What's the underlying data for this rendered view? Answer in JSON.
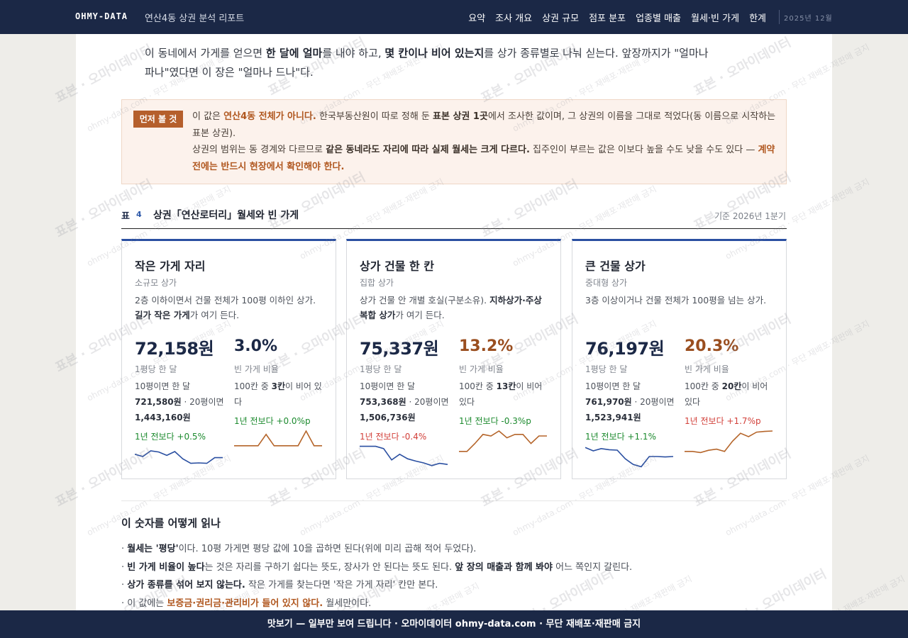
{
  "nav": {
    "brand": "OHMY-DATA",
    "report_title": "연산4동 상권 분석 리포트",
    "items": [
      "요약",
      "조사 개요",
      "상권 규모",
      "점포 분포",
      "업종별 매출",
      "월세·빈 가게",
      "한계"
    ],
    "date": "2025년 12월"
  },
  "intro": {
    "p1": "이 동네에서 가게를 얻으면 ",
    "b1": "한 달에 얼마",
    "p2": "를 내야 하고, ",
    "b2": "몇 칸이나 비어 있는지",
    "p3": "를 상가 종류별로 나눠 싣는다. 앞장까지가 \"얼마나 파나\"였다면 이 장은 \"얼마나 드나\"다."
  },
  "notice": {
    "badge": "먼저 볼 것",
    "l1a": "이 값은 ",
    "l1b": "연산4동 전체가 아니다.",
    "l1c": " 한국부동산원이 따로 정해 둔 ",
    "l1d": "표본 상권 1곳",
    "l1e": "에서 조사한 값이며, 그 상권의 이름을 그대로 적었다(동 이름으로 시작하는 표본 상권).",
    "l2a": "상권의 범위는 동 경계와 다르므로 ",
    "l2b": "같은 동네라도 자리에 따라 실제 월세는 크게 다르다.",
    "l2c": " 집주인이 부르는 값은 이보다 높을 수도 낮을 수도 있다 — ",
    "l2d": "계약 전에는 반드시 현장에서 확인해야 한다."
  },
  "table": {
    "label": "표",
    "number": "4",
    "title": "상권「연산로터리」월세와 빈 가게",
    "basis": "기준 2026년 1분기"
  },
  "cards": [
    {
      "title": "작은 가게 자리",
      "sub": "소규모 상가",
      "desc1": "2층 이하이면서 건물 전체가 100평 이하인 상가. ",
      "desc2": "길가 작은 가게",
      "desc3": "가 여기 든다.",
      "price": "72,158원",
      "price_label": "1평당 한 달",
      "detail_a": "10평이면 한 달 ",
      "detail_b": "721,580원",
      "detail_c": " · 20평이면 ",
      "detail_d": "1,443,160원",
      "price_change": "1년 전보다 +0.5%",
      "price_trend": "up",
      "vacancy": "3.0%",
      "vacancy_color": "#1b2846",
      "vacancy_label": "빈 가게 비율",
      "vac_a": "100칸 중 ",
      "vac_b": "3칸",
      "vac_c": "이 비어 있다",
      "vacancy_change": "1년 전보다 +0.0%p",
      "vacancy_trend": "up",
      "price_series": [
        0.6,
        0.5,
        0.75,
        0.7,
        0.55,
        0.72,
        0.4,
        0.2,
        0.22,
        0.2,
        0.45,
        0.45
      ],
      "vac_series": [
        0.35,
        0.35,
        0.35,
        0.35,
        0.85,
        0.35,
        0.35,
        0.35,
        0.35,
        1.0,
        0.35,
        0.35
      ]
    },
    {
      "title": "상가 건물 한 칸",
      "sub": "집합 상가",
      "desc1": "상가 건물 안 개별 호실(구분소유). ",
      "desc2": "지하상가·주상복합 상가",
      "desc3": "가 여기 든다.",
      "price": "75,337원",
      "price_label": "1평당 한 달",
      "detail_a": "10평이면 한 달 ",
      "detail_b": "753,368원",
      "detail_c": " · 20평이면 ",
      "detail_d": "1,506,736원",
      "price_change": "1년 전보다 -0.4%",
      "price_trend": "down",
      "vacancy": "13.2%",
      "vacancy_color": "#9a4e1f",
      "vacancy_label": "빈 가게 비율",
      "vac_a": "100칸 중 ",
      "vac_b": "13칸",
      "vac_c": "이 비어 있다",
      "vacancy_change": "1년 전보다 -0.3%p",
      "vacancy_trend": "up",
      "price_series": [
        0.95,
        0.95,
        0.95,
        0.85,
        0.35,
        0.6,
        0.4,
        0.3,
        0.22,
        0.1,
        0.2,
        0.15
      ],
      "vac_series": [
        0.1,
        0.1,
        0.45,
        0.85,
        0.78,
        1.0,
        0.7,
        0.85,
        0.85,
        0.45,
        0.78,
        0.78
      ]
    },
    {
      "title": "큰 건물 상가",
      "sub": "중대형 상가",
      "desc1": "3층 이상이거나 건물 전체가 100평을 넘는 상가.",
      "desc2": "",
      "desc3": "",
      "price": "76,197원",
      "price_label": "1평당 한 달",
      "detail_a": "10평이면 한 달 ",
      "detail_b": "761,970원",
      "detail_c": " · 20평이면 ",
      "detail_d": "1,523,941원",
      "price_change": "1년 전보다 +1.1%",
      "price_trend": "up",
      "vacancy": "20.3%",
      "vacancy_color": "#9a4e1f",
      "vacancy_label": "빈 가게 비율",
      "vac_a": "100칸 중 ",
      "vac_b": "20칸",
      "vac_c": "이 비어 있다",
      "vacancy_change": "1년 전보다 +1.7%p",
      "vacancy_trend": "down",
      "price_series": [
        0.9,
        0.75,
        0.85,
        0.8,
        0.78,
        0.4,
        0.15,
        0.05,
        0.5,
        0.5,
        0.48,
        0.5
      ],
      "vac_series": [
        0.1,
        0.1,
        0.05,
        0.15,
        0.2,
        0.1,
        0.55,
        0.9,
        0.75,
        0.95,
        0.98,
        1.0
      ]
    }
  ],
  "how": {
    "title": "이 숫자를 어떻게 읽나",
    "items": [
      {
        "a": "· ",
        "b": "월세는 '평당'",
        "c": "이다. 10평 가게면 평당 값에 10을 곱하면 된다(위에 미리 곱해 적어 두었다)."
      },
      {
        "a": "· ",
        "b": "빈 가게 비율이 높다",
        "c": "는 것은 자리를 구하기 쉽다는 뜻도, 장사가 안 된다는 뜻도 된다. ",
        "d": "앞 장의 매출과 함께 봐야",
        "e": " 어느 쪽인지 갈린다."
      },
      {
        "a": "· ",
        "b": "상가 종류를 섞어 보지 않는다.",
        "c": " 작은 가게를 찾는다면 '작은 가게 자리' 칸만 본다."
      },
      {
        "a": "· 이 값에는 ",
        "br": "보증금·권리금·관리비가 들어 있지 않다.",
        "c": " 월세만이다."
      }
    ]
  },
  "footer": "맛보기 — 일부만 보여 드립니다 · 오마이데이터 ohmy-data.com · 무단 재배포·재판매 금지",
  "watermark": {
    "main": "표본 · 오마이데이터",
    "sub": "ohmy-data.com · 무단 재배포·재판매 금지"
  },
  "colors": {
    "navy": "#1b2846",
    "card_accent": "#2a4fa1",
    "price_line": "#2a4fa1",
    "vac_line": "#b5652a",
    "up": "#1c8a2e",
    "down": "#d2403a"
  }
}
